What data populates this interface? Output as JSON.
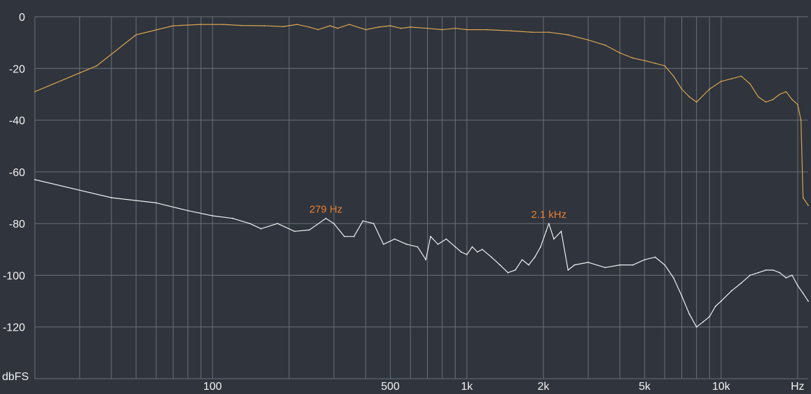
{
  "chart_data": {
    "type": "line",
    "x_scale": "log",
    "xlim": [
      20,
      22000
    ],
    "ylim": [
      -140,
      0
    ],
    "grid": true,
    "ylabel": "dbFS",
    "xlabel": "Hz",
    "y_ticks": [
      0,
      -20,
      -40,
      -60,
      -80,
      -100,
      -120
    ],
    "x_tick_labels": [
      {
        "value": 100,
        "label": "100"
      },
      {
        "value": 500,
        "label": "500"
      },
      {
        "value": 1000,
        "label": "1k"
      },
      {
        "value": 2000,
        "label": "2k"
      },
      {
        "value": 5000,
        "label": "5k"
      },
      {
        "value": 10000,
        "label": "10k"
      }
    ],
    "annotations": [
      {
        "x": 279,
        "y": -78,
        "label": "279 Hz"
      },
      {
        "x": 2100,
        "y": -80,
        "label": "2.1  kHz"
      }
    ],
    "colors": {
      "background": "#2f343d",
      "grid": "#6b7079",
      "series_1": "#d9a64f",
      "series_2": "#eef0f2",
      "annotation": "#e87f31"
    },
    "series": [
      {
        "points": [
          [
            20,
            -29
          ],
          [
            35,
            -19
          ],
          [
            50,
            -7
          ],
          [
            70,
            -3.5
          ],
          [
            90,
            -3
          ],
          [
            110,
            -3
          ],
          [
            130,
            -3.4
          ],
          [
            160,
            -3.5
          ],
          [
            190,
            -3.8
          ],
          [
            215,
            -3
          ],
          [
            240,
            -4
          ],
          [
            260,
            -5
          ],
          [
            290,
            -3.5
          ],
          [
            310,
            -4.5
          ],
          [
            345,
            -3
          ],
          [
            400,
            -5
          ],
          [
            450,
            -4
          ],
          [
            500,
            -3.5
          ],
          [
            550,
            -4.5
          ],
          [
            600,
            -4
          ],
          [
            700,
            -4.5
          ],
          [
            800,
            -5
          ],
          [
            900,
            -4.5
          ],
          [
            1000,
            -5
          ],
          [
            1200,
            -5
          ],
          [
            1500,
            -5.5
          ],
          [
            1800,
            -6
          ],
          [
            2100,
            -6
          ],
          [
            2500,
            -7
          ],
          [
            3000,
            -9
          ],
          [
            3500,
            -11
          ],
          [
            4000,
            -14
          ],
          [
            4500,
            -16
          ],
          [
            5000,
            -17
          ],
          [
            5500,
            -18
          ],
          [
            6000,
            -19
          ],
          [
            6500,
            -23
          ],
          [
            7000,
            -28
          ],
          [
            7500,
            -31
          ],
          [
            8000,
            -33
          ],
          [
            9000,
            -28
          ],
          [
            10000,
            -25
          ],
          [
            11000,
            -24
          ],
          [
            12000,
            -23
          ],
          [
            13000,
            -26
          ],
          [
            14000,
            -31
          ],
          [
            15000,
            -33
          ],
          [
            16000,
            -32
          ],
          [
            17000,
            -30
          ],
          [
            18000,
            -29
          ],
          [
            19000,
            -32
          ],
          [
            20000,
            -34
          ],
          [
            20600,
            -40
          ],
          [
            21000,
            -70
          ],
          [
            22000,
            -73
          ]
        ]
      },
      {
        "points": [
          [
            20,
            -63
          ],
          [
            40,
            -70
          ],
          [
            60,
            -72
          ],
          [
            80,
            -75
          ],
          [
            100,
            -77
          ],
          [
            120,
            -78
          ],
          [
            140,
            -80
          ],
          [
            155,
            -82
          ],
          [
            180,
            -80
          ],
          [
            210,
            -83
          ],
          [
            240,
            -82.5
          ],
          [
            279,
            -78
          ],
          [
            300,
            -80
          ],
          [
            330,
            -85
          ],
          [
            360,
            -85
          ],
          [
            390,
            -79
          ],
          [
            430,
            -80
          ],
          [
            470,
            -88
          ],
          [
            520,
            -86
          ],
          [
            580,
            -88
          ],
          [
            640,
            -89
          ],
          [
            690,
            -94
          ],
          [
            720,
            -85
          ],
          [
            770,
            -88
          ],
          [
            830,
            -86
          ],
          [
            900,
            -89
          ],
          [
            950,
            -91
          ],
          [
            1000,
            -92
          ],
          [
            1050,
            -89
          ],
          [
            1100,
            -91
          ],
          [
            1150,
            -90
          ],
          [
            1250,
            -93
          ],
          [
            1350,
            -96
          ],
          [
            1450,
            -99
          ],
          [
            1550,
            -98
          ],
          [
            1650,
            -94
          ],
          [
            1750,
            -96
          ],
          [
            1850,
            -93
          ],
          [
            1950,
            -89
          ],
          [
            2050,
            -83
          ],
          [
            2100,
            -80
          ],
          [
            2200,
            -86
          ],
          [
            2350,
            -83
          ],
          [
            2500,
            -98
          ],
          [
            2650,
            -96
          ],
          [
            3000,
            -95
          ],
          [
            3500,
            -97
          ],
          [
            4000,
            -96
          ],
          [
            4500,
            -96
          ],
          [
            5000,
            -94
          ],
          [
            5500,
            -93
          ],
          [
            6000,
            -96
          ],
          [
            6500,
            -101
          ],
          [
            7000,
            -108
          ],
          [
            7500,
            -115
          ],
          [
            8000,
            -120
          ],
          [
            8500,
            -118
          ],
          [
            9000,
            -116
          ],
          [
            9500,
            -112
          ],
          [
            10000,
            -110
          ],
          [
            11000,
            -106
          ],
          [
            12000,
            -103
          ],
          [
            13000,
            -100
          ],
          [
            14000,
            -99
          ],
          [
            15000,
            -98
          ],
          [
            16000,
            -98
          ],
          [
            17000,
            -99
          ],
          [
            18000,
            -101
          ],
          [
            19000,
            -100
          ],
          [
            20000,
            -104
          ],
          [
            21000,
            -107
          ],
          [
            22000,
            -110
          ]
        ]
      }
    ]
  }
}
